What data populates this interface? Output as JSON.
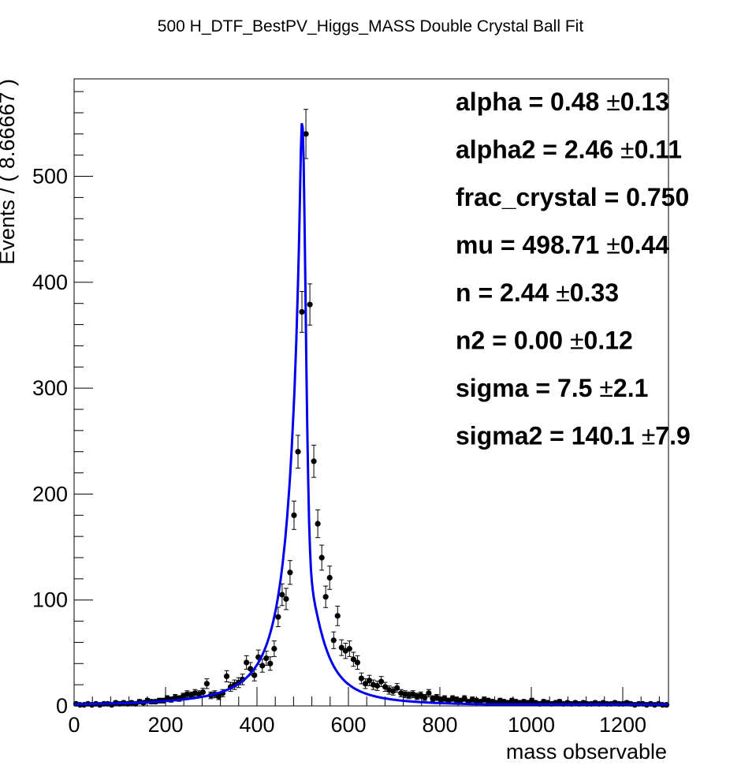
{
  "chart_data": {
    "type": "scatter",
    "title": "500 H_DTF_BestPV_Higgs_MASS Double Crystal Ball Fit",
    "xlabel": "mass observable",
    "ylabel": "Events / ( 8.66667 )",
    "xlim": [
      0,
      1300
    ],
    "ylim": [
      0,
      592
    ],
    "x_ticks": [
      0,
      200,
      400,
      600,
      800,
      1000,
      1200
    ],
    "x_tick_labels": [
      "0",
      "200",
      "400",
      "600",
      "800",
      "1000",
      "1200"
    ],
    "y_ticks": [
      0,
      100,
      200,
      300,
      400,
      500
    ],
    "y_tick_labels": [
      "0",
      "100",
      "200",
      "300",
      "400",
      "500"
    ],
    "grid": false,
    "fit_color": "#0000ee",
    "data_color": "#000000",
    "parameters": [
      {
        "name": "alpha",
        "value": "0.48",
        "error": "0.13"
      },
      {
        "name": "alpha2",
        "value": "2.46",
        "error": "0.11"
      },
      {
        "name": "frac_crystal",
        "value": "0.750",
        "error": ""
      },
      {
        "name": "mu",
        "value": "498.71",
        "error": "0.44"
      },
      {
        "name": "n",
        "value": "2.44",
        "error": "0.33"
      },
      {
        "name": "n2",
        "value": "0.00",
        "error": "0.12"
      },
      {
        "name": "sigma",
        "value": "7.5",
        "error": "2.1"
      },
      {
        "name": "sigma2",
        "value": "140.1",
        "error": "7.9"
      }
    ],
    "points": [
      [
        4.3,
        2
      ],
      [
        13,
        1
      ],
      [
        21.7,
        1
      ],
      [
        30.3,
        2
      ],
      [
        39,
        1
      ],
      [
        47.7,
        2
      ],
      [
        56.3,
        1
      ],
      [
        65,
        2
      ],
      [
        73.7,
        2
      ],
      [
        82.3,
        1
      ],
      [
        91,
        3
      ],
      [
        99.7,
        2
      ],
      [
        108.3,
        3
      ],
      [
        117,
        2
      ],
      [
        125.7,
        3
      ],
      [
        134.3,
        2
      ],
      [
        143,
        4
      ],
      [
        151.7,
        3
      ],
      [
        160.3,
        5
      ],
      [
        169,
        4
      ],
      [
        177.7,
        4
      ],
      [
        186.3,
        5
      ],
      [
        195,
        5
      ],
      [
        203.7,
        7
      ],
      [
        212.3,
        6
      ],
      [
        221,
        8
      ],
      [
        229.7,
        7
      ],
      [
        238.3,
        9
      ],
      [
        247,
        11
      ],
      [
        255.7,
        10
      ],
      [
        264.3,
        12
      ],
      [
        273,
        11
      ],
      [
        281.7,
        13
      ],
      [
        290.3,
        21
      ],
      [
        299,
        10
      ],
      [
        307.7,
        11
      ],
      [
        316.3,
        9
      ],
      [
        325,
        12
      ],
      [
        333.7,
        28
      ],
      [
        342.3,
        18
      ],
      [
        351,
        20
      ],
      [
        359.7,
        22
      ],
      [
        368.3,
        25
      ],
      [
        377,
        41
      ],
      [
        385.7,
        35
      ],
      [
        394.3,
        29
      ],
      [
        403,
        46
      ],
      [
        411.7,
        38
      ],
      [
        420.3,
        45
      ],
      [
        429,
        40
      ],
      [
        437.7,
        54
      ],
      [
        446.3,
        84
      ],
      [
        455,
        105
      ],
      [
        463.7,
        101
      ],
      [
        472.3,
        126
      ],
      [
        481,
        180
      ],
      [
        489.7,
        240
      ],
      [
        498.3,
        372
      ],
      [
        507,
        540
      ],
      [
        515.7,
        379
      ],
      [
        524.3,
        231
      ],
      [
        533,
        172
      ],
      [
        541.7,
        140
      ],
      [
        550.3,
        103
      ],
      [
        559,
        121
      ],
      [
        567.7,
        62
      ],
      [
        576.3,
        85
      ],
      [
        585,
        55
      ],
      [
        593.7,
        52
      ],
      [
        602.3,
        54
      ],
      [
        611,
        44
      ],
      [
        619.7,
        41
      ],
      [
        628.3,
        26
      ],
      [
        637,
        21
      ],
      [
        645.7,
        24
      ],
      [
        654.3,
        20
      ],
      [
        663,
        19
      ],
      [
        671.7,
        23
      ],
      [
        680.3,
        18
      ],
      [
        689,
        15
      ],
      [
        697.7,
        14
      ],
      [
        706.3,
        17
      ],
      [
        715,
        12
      ],
      [
        723.7,
        11
      ],
      [
        732.3,
        10
      ],
      [
        741,
        11
      ],
      [
        749.7,
        9
      ],
      [
        758.3,
        10
      ],
      [
        767,
        8
      ],
      [
        775.7,
        12
      ],
      [
        784.3,
        7
      ],
      [
        793,
        8
      ],
      [
        801.7,
        6
      ],
      [
        810.3,
        7
      ],
      [
        819,
        5
      ],
      [
        827.7,
        7
      ],
      [
        836.3,
        6
      ],
      [
        845,
        5
      ],
      [
        853.7,
        7
      ],
      [
        862.3,
        4
      ],
      [
        871,
        6
      ],
      [
        879.7,
        5
      ],
      [
        888.3,
        4
      ],
      [
        897,
        6
      ],
      [
        905.7,
        5
      ],
      [
        914.3,
        4
      ],
      [
        923,
        3
      ],
      [
        931.7,
        5
      ],
      [
        940.3,
        4
      ],
      [
        949,
        3
      ],
      [
        957.7,
        5
      ],
      [
        966.3,
        4
      ],
      [
        975,
        3
      ],
      [
        983.7,
        4
      ],
      [
        992.3,
        3
      ],
      [
        1001,
        5
      ],
      [
        1009.7,
        3
      ],
      [
        1018.3,
        2
      ],
      [
        1027,
        4
      ],
      [
        1035.7,
        3
      ],
      [
        1044.3,
        2
      ],
      [
        1053,
        3
      ],
      [
        1061.7,
        4
      ],
      [
        1070.3,
        2
      ],
      [
        1079,
        3
      ],
      [
        1087.7,
        2
      ],
      [
        1096.3,
        3
      ],
      [
        1105,
        2
      ],
      [
        1113.7,
        3
      ],
      [
        1122.3,
        2
      ],
      [
        1131,
        2
      ],
      [
        1139.7,
        3
      ],
      [
        1148.3,
        2
      ],
      [
        1157,
        3
      ],
      [
        1165.7,
        2
      ],
      [
        1174.3,
        2
      ],
      [
        1183,
        3
      ],
      [
        1191.7,
        2
      ],
      [
        1200.3,
        2
      ],
      [
        1209,
        3
      ],
      [
        1217.7,
        2
      ],
      [
        1226.3,
        1
      ],
      [
        1235,
        2
      ],
      [
        1243.7,
        2
      ],
      [
        1252.3,
        1
      ],
      [
        1261,
        2
      ],
      [
        1269.7,
        1
      ],
      [
        1278.3,
        2
      ],
      [
        1287,
        1
      ],
      [
        1295.7,
        1
      ]
    ]
  }
}
